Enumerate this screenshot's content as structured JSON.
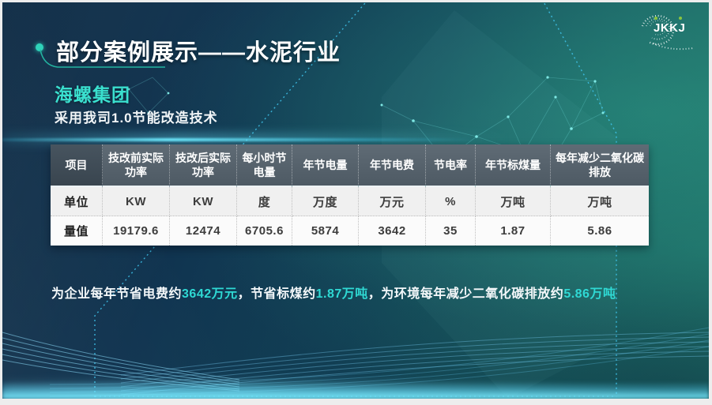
{
  "slide": {
    "title": "部分案例展示——水泥行业",
    "company": "海螺集团",
    "subtitle": "采用我司1.0节能改造技术",
    "logo_text": "JKKJ"
  },
  "table": {
    "columns": [
      "项目",
      "技改前实际功率",
      "技改后实际功率",
      "每小时节电量",
      "年节电量",
      "年节电费",
      "节电率",
      "年节标煤量",
      "每年减少二氧化碳排放"
    ],
    "rows": [
      {
        "label": "单位",
        "values": [
          "KW",
          "KW",
          "度",
          "万度",
          "万元",
          "%",
          "万吨",
          "万吨"
        ]
      },
      {
        "label": "量值",
        "values": [
          "19179.6",
          "12474",
          "6705.6",
          "5874",
          "3642",
          "35",
          "1.87",
          "5.86"
        ]
      }
    ]
  },
  "summary": {
    "segments": [
      {
        "text": "为企业每年节省电费约",
        "highlight": false
      },
      {
        "text": "3642万元",
        "highlight": true
      },
      {
        "text": "，节省标煤约",
        "highlight": false
      },
      {
        "text": "1.87万吨",
        "highlight": true
      },
      {
        "text": "，为环境每年减少二氧化碳排放约",
        "highlight": false
      },
      {
        "text": "5.86万吨",
        "highlight": true
      }
    ]
  },
  "colors": {
    "accent_turquoise": "#3ae0cf",
    "summary_highlight": "#2fd9d4",
    "table_header_bg": "#55616b",
    "logo_dot_green": "#8bc53f",
    "bg_navy": "#0c2943",
    "bg_teal": "#227367"
  }
}
